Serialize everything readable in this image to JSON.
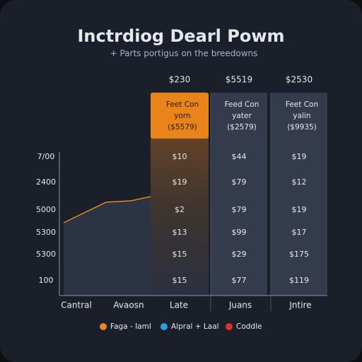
{
  "header": {
    "title": "Inctrdiog Dearl Powm",
    "subtitle": "+ Parts portigus on the breedowns"
  },
  "y_labels": [
    "7/00",
    "2400",
    "5000",
    "5300",
    "5300",
    "100"
  ],
  "columns": [
    {
      "price": "$230",
      "name": [
        "Feet Con",
        "yorn",
        "($5579)"
      ],
      "cells": [
        "$10",
        "$19",
        "$2",
        "$13",
        "$15",
        "$15"
      ]
    },
    {
      "price": "$5519",
      "name": [
        "Feed Con",
        "yater",
        "($2579)"
      ],
      "cells": [
        "$44",
        "$79",
        "$79",
        "$99",
        "$29",
        "$77"
      ]
    },
    {
      "price": "$2530",
      "name": [
        "Feet Con",
        "yalin",
        "($9935)"
      ],
      "cells": [
        "$19",
        "$12",
        "$19",
        "$17",
        "$175",
        "$119"
      ]
    }
  ],
  "x_labels": [
    "Cantral",
    "Avaosn",
    "Late",
    "Juans",
    "Jntire"
  ],
  "legend": [
    "Faga - Iaml",
    "Alpral + Laal",
    "Coddle"
  ]
}
